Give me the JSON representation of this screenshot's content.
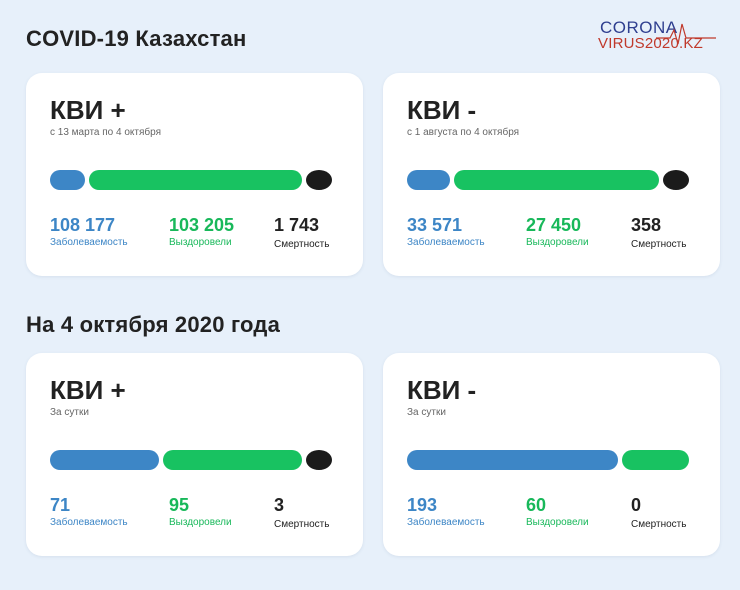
{
  "header": {
    "title": "COVID-19 Казахстан",
    "section_title": "На 4 октября 2020 года",
    "logo_line1": "CORONA",
    "logo_line2": "VIRUS2020.KZ"
  },
  "colors": {
    "cases": "#3d86c6",
    "recovered": "#18c261",
    "deaths": "#1b1b1b"
  },
  "cards": [
    {
      "title": "КВИ +",
      "period": "с 13 марта по 4 октября",
      "cases": "108 177",
      "cases_label": "Заболеваемость",
      "recovered": "103 205",
      "recovered_label": "Выздоровели",
      "deaths": "1 743",
      "deaths_label": "Смертность",
      "bar": {
        "cases_share": 0.13,
        "recovered_share": 0.79,
        "deaths_share": 0.08
      }
    },
    {
      "title": "КВИ -",
      "period": "с 1 августа по 4 октября",
      "cases": "33 571",
      "cases_label": "Заболеваемость",
      "recovered": "27 450",
      "recovered_label": "Выздоровели",
      "deaths": "358",
      "deaths_label": "Смертность",
      "bar": {
        "cases_share": 0.16,
        "recovered_share": 0.77,
        "deaths_share": 0.07
      }
    },
    {
      "title": "КВИ +",
      "period": "За сутки",
      "cases": "71",
      "cases_label": "Заболеваемость",
      "recovered": "95",
      "recovered_label": "Выздоровели",
      "deaths": "3",
      "deaths_label": "Смертность",
      "bar": {
        "cases_share": 0.4,
        "recovered_share": 0.51,
        "deaths_share": 0.07
      }
    },
    {
      "title": "КВИ -",
      "period": "За сутки",
      "cases": "193",
      "cases_label": "Заболеваемость",
      "recovered": "60",
      "recovered_label": "Выздоровели",
      "deaths": "0",
      "deaths_label": "Смертность",
      "bar": {
        "cases_share": 0.76,
        "recovered_share": 0.24,
        "deaths_share": 0
      }
    }
  ]
}
